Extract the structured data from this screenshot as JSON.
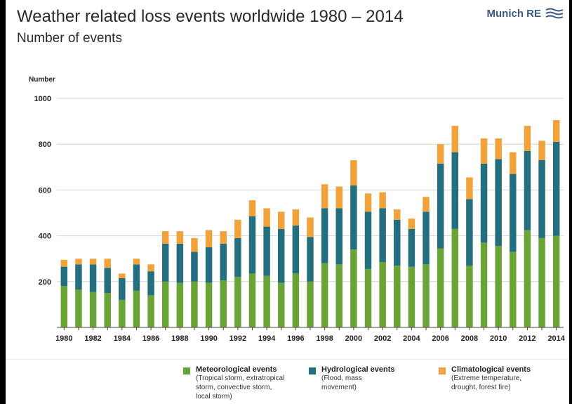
{
  "title": "Weather related loss events worldwide 1980 – 2014",
  "subtitle": "Number of events",
  "logo": {
    "text": "Munich RE"
  },
  "colors": {
    "meteorological": "#6aa336",
    "hydrological": "#236e7f",
    "climatological": "#f2a23a"
  },
  "legend": [
    {
      "name": "Meteorological events",
      "desc": [
        "(Tropical storm, extratropical",
        "storm, convective storm,",
        "local storm)"
      ],
      "color": "#6aa336"
    },
    {
      "name": "Hydrological events",
      "desc": [
        "(Flood, mass",
        "movement)"
      ],
      "color": "#236e7f"
    },
    {
      "name": "Climatological events",
      "desc": [
        "(Extreme temperature,",
        "drought, forest fire)"
      ],
      "color": "#f2a23a"
    }
  ],
  "chart_data": {
    "type": "bar",
    "stacked": true,
    "ylabel": "Number",
    "ylim": [
      0,
      1000
    ],
    "yticks": [
      200,
      400,
      600,
      800,
      1000
    ],
    "xticks": [
      "1980",
      "1982",
      "1984",
      "1986",
      "1988",
      "1990",
      "1992",
      "1994",
      "1996",
      "1998",
      "2000",
      "2002",
      "2004",
      "2006",
      "2008",
      "2010",
      "2012",
      "2014"
    ],
    "grid": true,
    "legend_position": "bottom",
    "categories": [
      "1980",
      "1981",
      "1982",
      "1983",
      "1984",
      "1985",
      "1986",
      "1987",
      "1988",
      "1989",
      "1990",
      "1991",
      "1992",
      "1993",
      "1994",
      "1995",
      "1996",
      "1997",
      "1998",
      "1999",
      "2000",
      "2001",
      "2002",
      "2003",
      "2004",
      "2005",
      "2006",
      "2007",
      "2008",
      "2009",
      "2010",
      "2011",
      "2012",
      "2013",
      "2014"
    ],
    "series": [
      {
        "name": "Meteorological events",
        "color": "#6aa336",
        "values": [
          180,
          165,
          155,
          150,
          120,
          160,
          140,
          200,
          195,
          200,
          195,
          205,
          220,
          235,
          225,
          195,
          235,
          200,
          280,
          275,
          340,
          255,
          285,
          270,
          265,
          275,
          345,
          430,
          270,
          370,
          355,
          330,
          425,
          390,
          400
        ]
      },
      {
        "name": "Hydrological events",
        "color": "#236e7f",
        "values": [
          85,
          110,
          120,
          110,
          95,
          115,
          105,
          165,
          170,
          130,
          155,
          160,
          170,
          250,
          215,
          235,
          210,
          195,
          240,
          245,
          280,
          250,
          235,
          200,
          165,
          230,
          370,
          335,
          290,
          345,
          380,
          340,
          345,
          340,
          410
        ]
      },
      {
        "name": "Climatological events",
        "color": "#f2a23a",
        "values": [
          30,
          25,
          25,
          40,
          20,
          25,
          30,
          55,
          55,
          60,
          75,
          55,
          80,
          70,
          80,
          75,
          70,
          85,
          105,
          95,
          110,
          80,
          70,
          45,
          45,
          65,
          85,
          115,
          95,
          110,
          90,
          95,
          110,
          85,
          95
        ]
      }
    ]
  }
}
